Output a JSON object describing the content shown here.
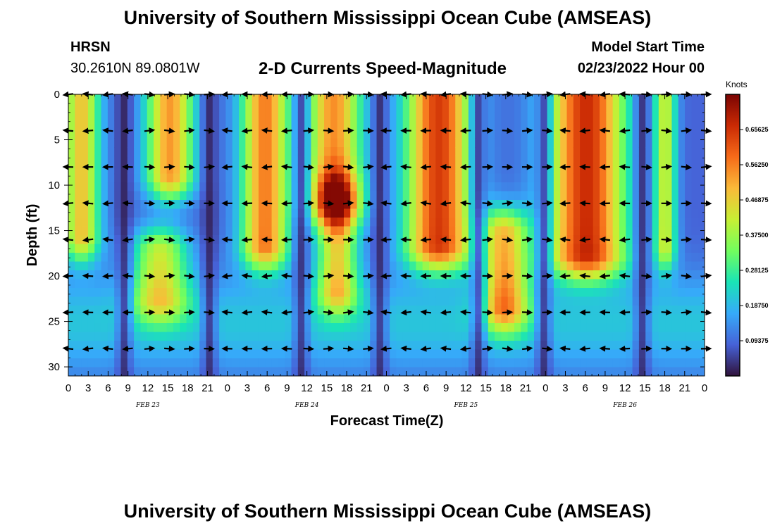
{
  "header": {
    "title": "University of Southern Mississippi Ocean Cube (AMSEAS)",
    "station": "HRSN",
    "coords": "30.2610N  89.0801W",
    "subtitle": "2-D Currents Speed-Magnitude",
    "model_start_label": "Model Start Time",
    "model_start_value": "02/23/2022 Hour 00"
  },
  "footer": {
    "title": "University of Southern Mississippi Ocean Cube (AMSEAS)"
  },
  "chart_data": {
    "type": "heatmap",
    "title": "2-D Currents Speed-Magnitude",
    "xlabel": "Forecast Time(Z)",
    "ylabel": "Depth (ft)",
    "x_range_hours": [
      0,
      96
    ],
    "y_range_ft": [
      0,
      31
    ],
    "y_ticks": [
      "0",
      "5",
      "10",
      "15",
      "20",
      "25",
      "30"
    ],
    "y_tick_values": [
      0,
      5,
      10,
      15,
      20,
      25,
      30
    ],
    "x_tick_labels": [
      "0",
      "3",
      "6",
      "9",
      "12",
      "15",
      "18",
      "21",
      "0",
      "3",
      "6",
      "9",
      "12",
      "15",
      "18",
      "21",
      "0",
      "3",
      "6",
      "9",
      "12",
      "15",
      "18",
      "21",
      "0",
      "3",
      "6",
      "9",
      "12",
      "15",
      "18",
      "21",
      "0"
    ],
    "x_tick_hours": [
      0,
      3,
      6,
      9,
      12,
      15,
      18,
      21,
      24,
      27,
      30,
      33,
      36,
      39,
      42,
      45,
      48,
      51,
      54,
      57,
      60,
      63,
      66,
      69,
      72,
      75,
      78,
      81,
      84,
      87,
      90,
      93,
      96
    ],
    "date_labels": [
      "FEB 23",
      "FEB 24",
      "FEB 25",
      "FEB 26"
    ],
    "date_label_hours": [
      12,
      36,
      60,
      84
    ],
    "colorbar": {
      "label": "Knots",
      "min": 0,
      "max": 0.75,
      "ticks": [
        "0.65625",
        "0.56250",
        "0.46875",
        "0.37500",
        "0.28125",
        "0.18750",
        "0.09375"
      ],
      "tick_values": [
        0.65625,
        0.5625,
        0.46875,
        0.375,
        0.28125,
        0.1875,
        0.09375
      ],
      "colormap": [
        "#30123b",
        "#4662d7",
        "#36aaf9",
        "#1ae4b6",
        "#72fe5e",
        "#c7ef34",
        "#faba39",
        "#f66b19",
        "#ca2a04",
        "#7a0403"
      ]
    },
    "arrow_depths_ft": [
      0,
      4,
      8,
      12,
      16,
      20,
      24,
      28
    ],
    "arrow_interval_hours": 3,
    "speed_features": [
      {
        "t": 2.0,
        "w": 2.0,
        "d0": 0,
        "d1": 16,
        "v": 0.4
      },
      {
        "t": 15.5,
        "w": 2.6,
        "d0": 0,
        "d1": 9,
        "v": 0.45
      },
      {
        "t": 14.0,
        "w": 3.0,
        "d0": 18,
        "d1": 23,
        "v": 0.32
      },
      {
        "t": 30.0,
        "w": 2.6,
        "d0": 0,
        "d1": 17,
        "v": 0.48
      },
      {
        "t": 40.5,
        "w": 3.0,
        "d0": 0,
        "d1": 12,
        "v": 0.46
      },
      {
        "t": 41.0,
        "w": 2.2,
        "d0": 12,
        "d1": 22,
        "v": 0.36
      },
      {
        "t": 56.5,
        "w": 3.6,
        "d0": 0,
        "d1": 17,
        "v": 0.56
      },
      {
        "t": 66.5,
        "w": 2.6,
        "d0": 16,
        "d1": 24,
        "v": 0.4
      },
      {
        "t": 79.0,
        "w": 4.2,
        "d0": 0,
        "d1": 18,
        "v": 0.58
      },
      {
        "t": 91.0,
        "w": 1.2,
        "d0": 0,
        "d1": 17,
        "v": 0.33
      }
    ],
    "slack_hours": [
      8.5,
      21.5,
      35.5,
      47.5,
      62.5,
      72.5,
      87.5
    ]
  }
}
